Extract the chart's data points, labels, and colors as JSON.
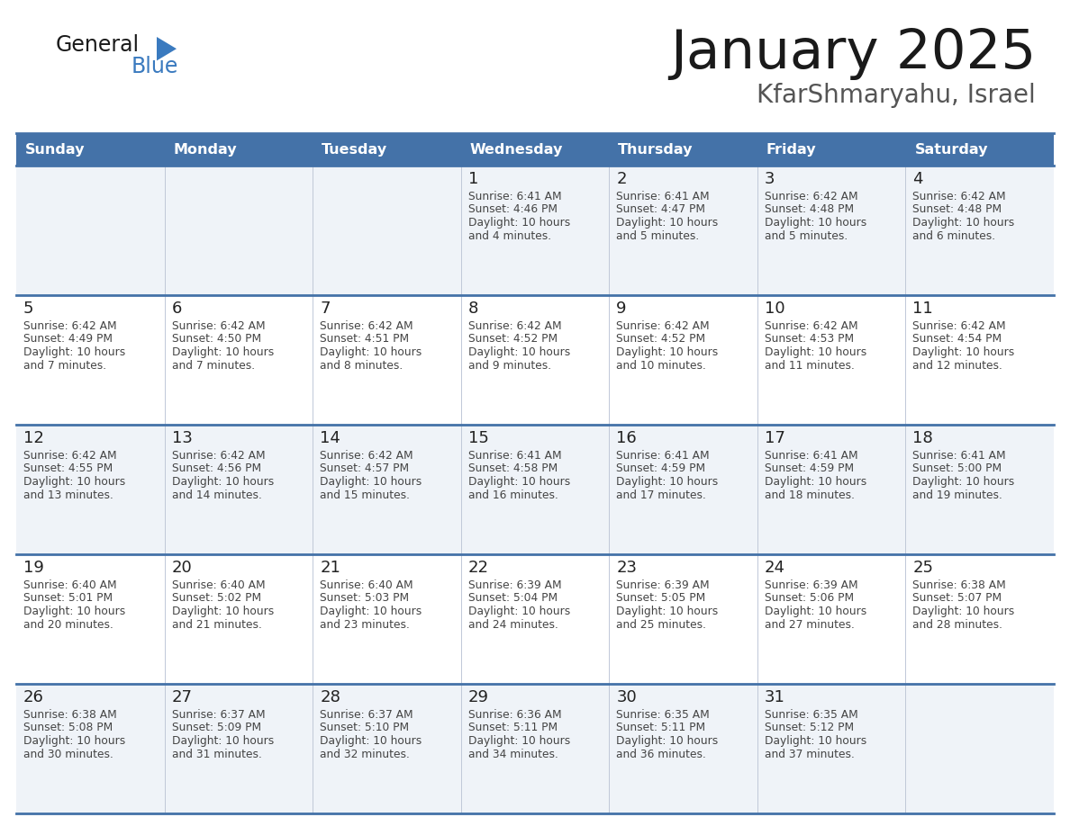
{
  "title": "January 2025",
  "subtitle": "KfarShmaryahu, Israel",
  "header_color": "#4472a8",
  "header_text_color": "#ffffff",
  "row_bg_odd": "#eff3f8",
  "row_bg_even": "#ffffff",
  "border_color": "#4472a8",
  "grid_color": "#c0c8d8",
  "text_color": "#222222",
  "body_text_color": "#444444",
  "day_names": [
    "Sunday",
    "Monday",
    "Tuesday",
    "Wednesday",
    "Thursday",
    "Friday",
    "Saturday"
  ],
  "days": [
    {
      "date": 1,
      "col": 3,
      "row": 0,
      "sunrise": "6:41 AM",
      "sunset": "4:46 PM",
      "daylight": "10 hours and 4 minutes."
    },
    {
      "date": 2,
      "col": 4,
      "row": 0,
      "sunrise": "6:41 AM",
      "sunset": "4:47 PM",
      "daylight": "10 hours and 5 minutes."
    },
    {
      "date": 3,
      "col": 5,
      "row": 0,
      "sunrise": "6:42 AM",
      "sunset": "4:48 PM",
      "daylight": "10 hours and 5 minutes."
    },
    {
      "date": 4,
      "col": 6,
      "row": 0,
      "sunrise": "6:42 AM",
      "sunset": "4:48 PM",
      "daylight": "10 hours and 6 minutes."
    },
    {
      "date": 5,
      "col": 0,
      "row": 1,
      "sunrise": "6:42 AM",
      "sunset": "4:49 PM",
      "daylight": "10 hours and 7 minutes."
    },
    {
      "date": 6,
      "col": 1,
      "row": 1,
      "sunrise": "6:42 AM",
      "sunset": "4:50 PM",
      "daylight": "10 hours and 7 minutes."
    },
    {
      "date": 7,
      "col": 2,
      "row": 1,
      "sunrise": "6:42 AM",
      "sunset": "4:51 PM",
      "daylight": "10 hours and 8 minutes."
    },
    {
      "date": 8,
      "col": 3,
      "row": 1,
      "sunrise": "6:42 AM",
      "sunset": "4:52 PM",
      "daylight": "10 hours and 9 minutes."
    },
    {
      "date": 9,
      "col": 4,
      "row": 1,
      "sunrise": "6:42 AM",
      "sunset": "4:52 PM",
      "daylight": "10 hours and 10 minutes."
    },
    {
      "date": 10,
      "col": 5,
      "row": 1,
      "sunrise": "6:42 AM",
      "sunset": "4:53 PM",
      "daylight": "10 hours and 11 minutes."
    },
    {
      "date": 11,
      "col": 6,
      "row": 1,
      "sunrise": "6:42 AM",
      "sunset": "4:54 PM",
      "daylight": "10 hours and 12 minutes."
    },
    {
      "date": 12,
      "col": 0,
      "row": 2,
      "sunrise": "6:42 AM",
      "sunset": "4:55 PM",
      "daylight": "10 hours and 13 minutes."
    },
    {
      "date": 13,
      "col": 1,
      "row": 2,
      "sunrise": "6:42 AM",
      "sunset": "4:56 PM",
      "daylight": "10 hours and 14 minutes."
    },
    {
      "date": 14,
      "col": 2,
      "row": 2,
      "sunrise": "6:42 AM",
      "sunset": "4:57 PM",
      "daylight": "10 hours and 15 minutes."
    },
    {
      "date": 15,
      "col": 3,
      "row": 2,
      "sunrise": "6:41 AM",
      "sunset": "4:58 PM",
      "daylight": "10 hours and 16 minutes."
    },
    {
      "date": 16,
      "col": 4,
      "row": 2,
      "sunrise": "6:41 AM",
      "sunset": "4:59 PM",
      "daylight": "10 hours and 17 minutes."
    },
    {
      "date": 17,
      "col": 5,
      "row": 2,
      "sunrise": "6:41 AM",
      "sunset": "4:59 PM",
      "daylight": "10 hours and 18 minutes."
    },
    {
      "date": 18,
      "col": 6,
      "row": 2,
      "sunrise": "6:41 AM",
      "sunset": "5:00 PM",
      "daylight": "10 hours and 19 minutes."
    },
    {
      "date": 19,
      "col": 0,
      "row": 3,
      "sunrise": "6:40 AM",
      "sunset": "5:01 PM",
      "daylight": "10 hours and 20 minutes."
    },
    {
      "date": 20,
      "col": 1,
      "row": 3,
      "sunrise": "6:40 AM",
      "sunset": "5:02 PM",
      "daylight": "10 hours and 21 minutes."
    },
    {
      "date": 21,
      "col": 2,
      "row": 3,
      "sunrise": "6:40 AM",
      "sunset": "5:03 PM",
      "daylight": "10 hours and 23 minutes."
    },
    {
      "date": 22,
      "col": 3,
      "row": 3,
      "sunrise": "6:39 AM",
      "sunset": "5:04 PM",
      "daylight": "10 hours and 24 minutes."
    },
    {
      "date": 23,
      "col": 4,
      "row": 3,
      "sunrise": "6:39 AM",
      "sunset": "5:05 PM",
      "daylight": "10 hours and 25 minutes."
    },
    {
      "date": 24,
      "col": 5,
      "row": 3,
      "sunrise": "6:39 AM",
      "sunset": "5:06 PM",
      "daylight": "10 hours and 27 minutes."
    },
    {
      "date": 25,
      "col": 6,
      "row": 3,
      "sunrise": "6:38 AM",
      "sunset": "5:07 PM",
      "daylight": "10 hours and 28 minutes."
    },
    {
      "date": 26,
      "col": 0,
      "row": 4,
      "sunrise": "6:38 AM",
      "sunset": "5:08 PM",
      "daylight": "10 hours and 30 minutes."
    },
    {
      "date": 27,
      "col": 1,
      "row": 4,
      "sunrise": "6:37 AM",
      "sunset": "5:09 PM",
      "daylight": "10 hours and 31 minutes."
    },
    {
      "date": 28,
      "col": 2,
      "row": 4,
      "sunrise": "6:37 AM",
      "sunset": "5:10 PM",
      "daylight": "10 hours and 32 minutes."
    },
    {
      "date": 29,
      "col": 3,
      "row": 4,
      "sunrise": "6:36 AM",
      "sunset": "5:11 PM",
      "daylight": "10 hours and 34 minutes."
    },
    {
      "date": 30,
      "col": 4,
      "row": 4,
      "sunrise": "6:35 AM",
      "sunset": "5:11 PM",
      "daylight": "10 hours and 36 minutes."
    },
    {
      "date": 31,
      "col": 5,
      "row": 4,
      "sunrise": "6:35 AM",
      "sunset": "5:12 PM",
      "daylight": "10 hours and 37 minutes."
    }
  ]
}
